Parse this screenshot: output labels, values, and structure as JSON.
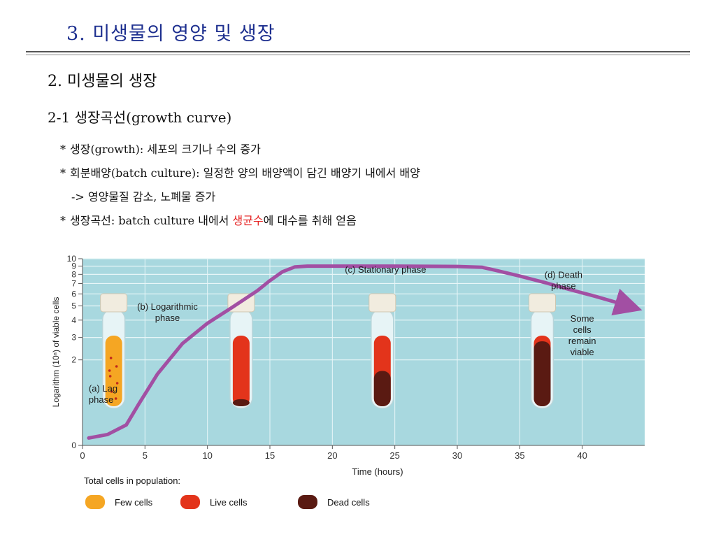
{
  "slide": {
    "title": "3. 미생물의 영양 및 생장",
    "heading": "2. 미생물의 생장",
    "subheading": "2-1 생장곡선(growth curve)",
    "bullet_marker": "*",
    "bullets": [
      {
        "text": "생장(growth): 세포의 크기나 수의 증가"
      },
      {
        "text": "회분배양(batch culture): 일정한 양의 배양액이 담긴 배양기 내에서 배양"
      },
      {
        "text": "-> 영양물질 감소, 노폐물 증가"
      },
      {
        "pre": "생장곡선: batch culture 내에서 ",
        "highlight": "생균수",
        "post": "에 대수를 취해 얻음"
      }
    ]
  },
  "chart_data": {
    "type": "line",
    "xlabel": "Time (hours)",
    "ylabel": "Logarithm (10ⁿ) of viable cells",
    "xlim": [
      0,
      45
    ],
    "ylim": [
      0,
      10
    ],
    "xticks": [
      0,
      5,
      10,
      15,
      20,
      25,
      30,
      35,
      40
    ],
    "yticks": [
      0,
      2,
      3,
      4,
      5,
      6,
      7,
      8,
      9,
      10
    ],
    "grid": true,
    "series": [
      {
        "color": "#a24fa3",
        "x": [
          0.5,
          2,
          3.5,
          4.5,
          6,
          8,
          10,
          12,
          14,
          15,
          16,
          17,
          18,
          20,
          25,
          30,
          32,
          33,
          35,
          37,
          39,
          41,
          43,
          44
        ],
        "y": [
          0.1,
          0.15,
          0.3,
          0.7,
          1.5,
          2.7,
          3.8,
          4.9,
          6.3,
          7.3,
          8.3,
          8.9,
          9.0,
          9.0,
          9.0,
          8.95,
          8.85,
          8.5,
          7.8,
          7.1,
          6.4,
          5.8,
          5.2,
          4.9
        ]
      }
    ],
    "annotations": [
      {
        "label": "(a) Lag\nphase",
        "x": 0.5,
        "y": 1.0
      },
      {
        "label": "(b) Logarithmic\nphase",
        "x": 6.8,
        "y": 4.7
      },
      {
        "label": "(c) Stationary phase",
        "x": 21,
        "y": 8.2
      },
      {
        "label": "(d) Death\nphase",
        "x": 38.5,
        "y": 7.6
      },
      {
        "label": "Some\ncells\nremain\nviable",
        "x": 40,
        "y": 3.9
      }
    ],
    "tubes": [
      {
        "name": "tube-lag",
        "x": 2.5,
        "fill": "#f5a623",
        "dead_fraction": 0,
        "dots": true
      },
      {
        "name": "tube-log",
        "x": 12.7,
        "fill": "#e3341b",
        "dead_fraction": 0.1,
        "dots": false
      },
      {
        "name": "tube-stationary",
        "x": 24.0,
        "fill": "#e3341b",
        "dead_fraction": 0.5,
        "dots": false
      },
      {
        "name": "tube-death",
        "x": 36.8,
        "fill": "#e3341b",
        "dead_fraction": 0.92,
        "dots": false
      }
    ],
    "legend": {
      "title": "Total cells in population:",
      "items": [
        {
          "label": "Few cells",
          "color": "#f5a623"
        },
        {
          "label": "Live cells",
          "color": "#e3341b"
        },
        {
          "label": "Dead cells",
          "color": "#5a1a12"
        }
      ]
    },
    "colors": {
      "plot_bg": "#a8d8df",
      "grid": "#e8f6f8",
      "axis": "#555555"
    }
  }
}
